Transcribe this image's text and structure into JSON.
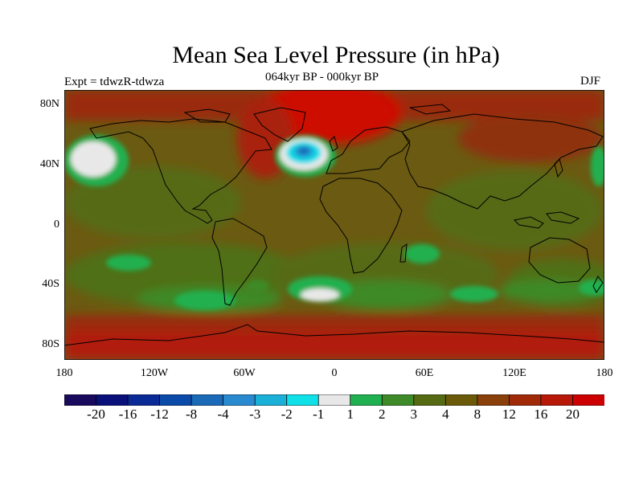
{
  "header": {
    "title": "Mean Sea Level Pressure (in hPa)",
    "expt": "Expt = tdwzR-tdwza",
    "period": "064kyr BP - 000kyr BP",
    "season": "DJF"
  },
  "axes": {
    "lat_labels": [
      "80N",
      "40N",
      "0",
      "40S",
      "80S"
    ],
    "lon_labels": [
      "180",
      "120W",
      "60W",
      "0",
      "60E",
      "120E",
      "180"
    ]
  },
  "colorbar": {
    "labels": [
      "-20",
      "-16",
      "-12",
      "-8",
      "-4",
      "-3",
      "-2",
      "-1",
      "1",
      "2",
      "3",
      "4",
      "8",
      "12",
      "16",
      "20"
    ],
    "colors": [
      "#1a0a5e",
      "#0a107a",
      "#0a2a96",
      "#0a4aa8",
      "#1a6ab8",
      "#2a8ad0",
      "#1ab0d8",
      "#10e0e8",
      "#e8e8e8",
      "#20b050",
      "#3e8a28",
      "#566a14",
      "#6a5a0a",
      "#8a400a",
      "#a02a08",
      "#b81808",
      "#cc0000"
    ]
  },
  "colors": {
    "background_field": "#6c5a10",
    "high_anomaly": "#9a2c0a",
    "strong_high": "#cc0000",
    "land_outline": "#000000"
  }
}
